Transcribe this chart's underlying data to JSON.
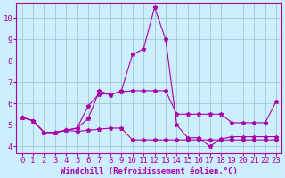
{
  "xlabel": "Windchill (Refroidissement éolien,°C)",
  "xlim": [
    -0.5,
    23.5
  ],
  "ylim": [
    3.7,
    10.7
  ],
  "xticks": [
    0,
    1,
    2,
    3,
    4,
    5,
    6,
    7,
    8,
    9,
    10,
    11,
    12,
    13,
    14,
    15,
    16,
    17,
    18,
    19,
    20,
    21,
    22,
    23
  ],
  "yticks": [
    4,
    5,
    6,
    7,
    8,
    9,
    10
  ],
  "bg_color": "#cceeff",
  "line_color": "#aa00aa",
  "grid_color": "#99cccc",
  "series": [
    [
      5.35,
      5.2,
      4.65,
      4.65,
      4.75,
      4.7,
      4.75,
      4.8,
      4.85,
      4.85,
      4.3,
      4.3,
      4.3,
      4.3,
      4.3,
      4.3,
      4.3,
      4.3,
      4.3,
      4.3,
      4.3,
      4.3,
      4.3,
      4.3
    ],
    [
      5.35,
      5.2,
      4.65,
      4.65,
      4.75,
      4.85,
      5.3,
      6.6,
      6.4,
      6.6,
      8.3,
      8.55,
      10.5,
      9.0,
      5.0,
      4.4,
      4.4,
      4.0,
      4.35,
      4.45,
      4.45,
      4.45,
      4.45,
      4.45
    ],
    [
      5.35,
      5.2,
      4.65,
      4.65,
      4.75,
      4.85,
      5.9,
      6.45,
      6.45,
      6.55,
      6.6,
      6.6,
      6.6,
      6.6,
      5.5,
      5.5,
      5.5,
      5.5,
      5.5,
      5.1,
      5.1,
      5.1,
      5.1,
      6.1
    ]
  ],
  "xlabel_fontsize": 6.5,
  "tick_fontsize": 6.5
}
